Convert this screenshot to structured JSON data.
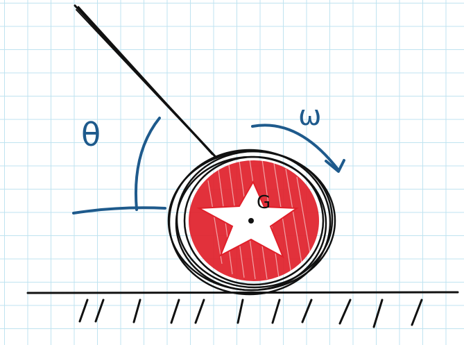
{
  "diagram": {
    "labels": {
      "angle": "θ",
      "angular_velocity": "ω",
      "center_of_mass": "G"
    },
    "colors": {
      "grid": "#bfe3f0",
      "ink": "#111111",
      "annotation": "#1e5a8c",
      "wheel_fill": "#e0202a"
    },
    "icons": {
      "wheel": "star-filled-disk",
      "ground": "hatched-ground-line",
      "rod": "rod-stroke"
    }
  }
}
